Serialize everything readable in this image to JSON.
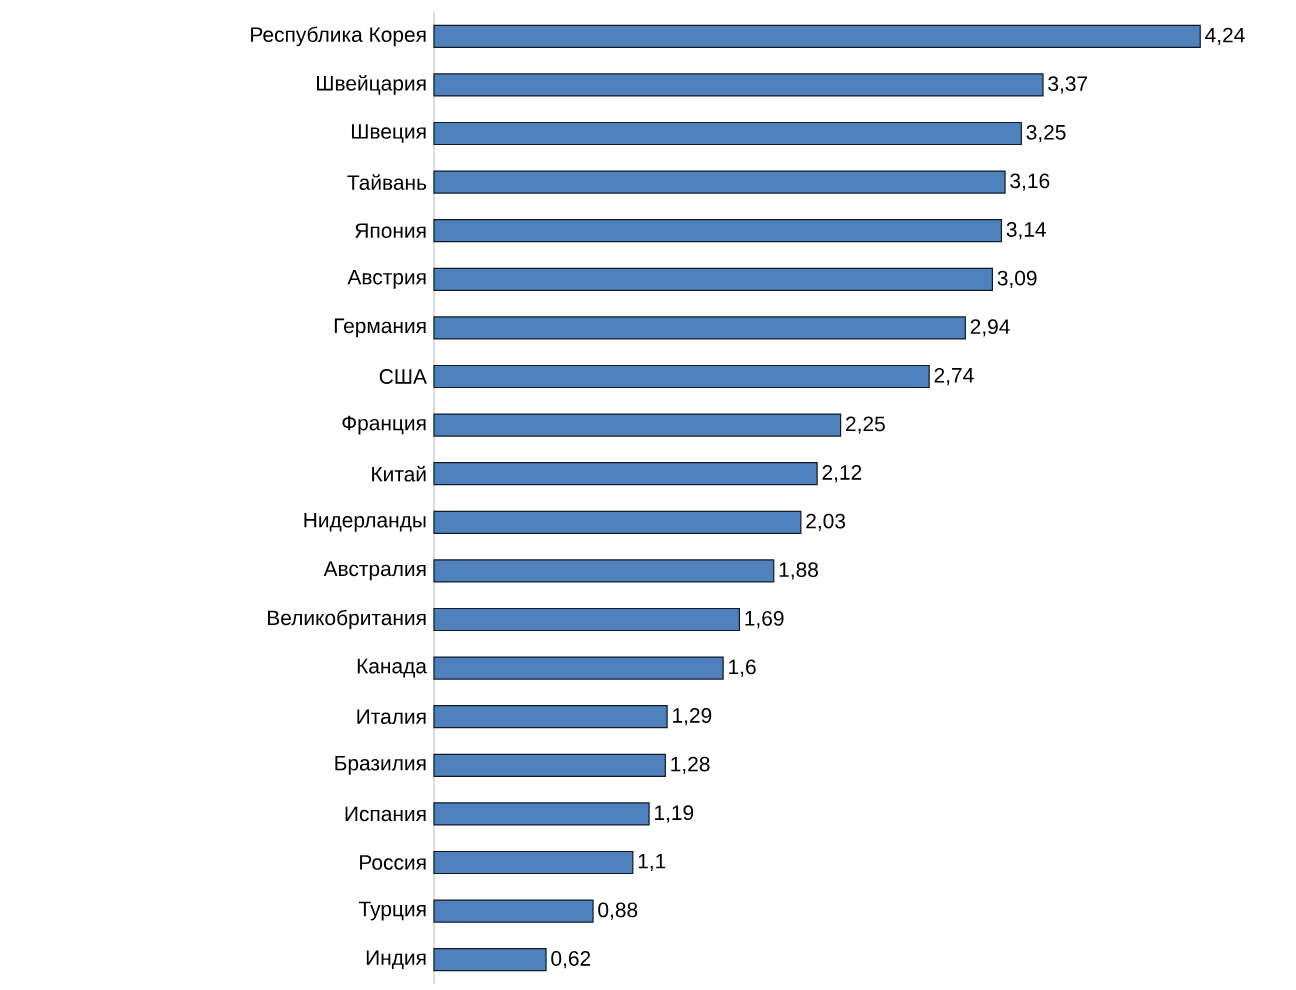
{
  "chart_data": {
    "type": "bar",
    "orientation": "horizontal",
    "color": "#4f81bd",
    "categories": [
      "Республика Корея",
      "Швейцария",
      "Швеция",
      "Тайвань",
      "Япония",
      "Австрия",
      "Германия",
      "США",
      "Франция",
      "Китай",
      "Нидерланды",
      "Австралия",
      "Великобритания",
      "Канада",
      "Италия",
      "Бразилия",
      "Испания",
      "Россия",
      "Турция",
      "Индия"
    ],
    "values": [
      4.24,
      3.37,
      3.25,
      3.16,
      3.14,
      3.09,
      2.94,
      2.74,
      2.25,
      2.12,
      2.03,
      1.88,
      1.69,
      1.6,
      1.29,
      1.28,
      1.19,
      1.1,
      0.88,
      0.62
    ],
    "value_labels": [
      "4,24",
      "3,37",
      "3,25",
      "3,16",
      "3,14",
      "3,09",
      "2,94",
      "2,74",
      "2,25",
      "2,12",
      "2,03",
      "1,88",
      "1,69",
      "1,6",
      "1,29",
      "1,28",
      "1,19",
      "1,1",
      "0,88",
      "0,62"
    ]
  }
}
